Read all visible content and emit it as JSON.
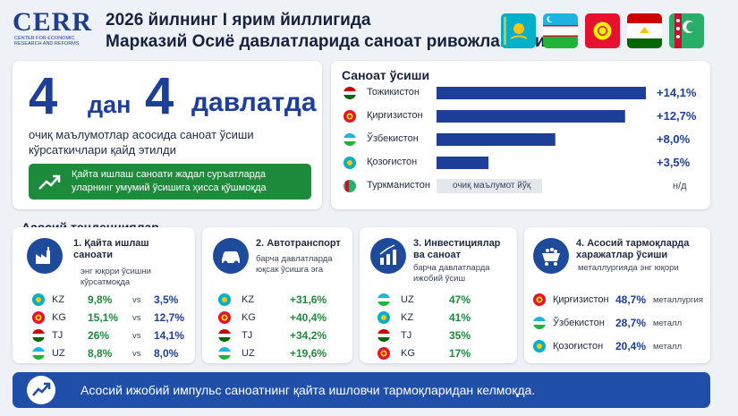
{
  "header": {
    "logo": "CERR",
    "logo_sub": "Center for Economic Research and Reforms",
    "title_line1": "2026 йилнинг I ярим йиллигида",
    "title_line2": "Марказий Осиё давлатларида саноат ривожланиши"
  },
  "hero": {
    "num1": "4",
    "word1": "дан",
    "num2": "4",
    "word2": "давлатда",
    "subtitle": "очиқ маълумотлар асосида саноат ўсиши кўрсаткичлари қайд этилди",
    "banner": "Қайта ишлаш саноати жадал суръатларда уларнинг умумий ўсишига ҳисса қўшмоқда"
  },
  "growth": {
    "title": "Саноат ўсиши",
    "no_data_label": "очиқ маълумот йўқ",
    "na": "н/д"
  },
  "chart_data": {
    "type": "bar",
    "title": "Саноат ўсиши",
    "categories": [
      "Тожикистон",
      "Қирғизистон",
      "Ўзбекистон",
      "Қозоғистон",
      "Туркманистон"
    ],
    "values": [
      14.1,
      12.7,
      8.0,
      3.5,
      null
    ],
    "value_labels": [
      "+14,1%",
      "+12,7%",
      "+8,0%",
      "+3,5%",
      "н/д"
    ],
    "colors": {
      "bar": "#1d3f9a",
      "no_data": "#e4e7ec"
    },
    "xlim": [
      0,
      14.1
    ],
    "xlabel": "",
    "ylabel": ""
  },
  "trends": {
    "title": "Асосий тенденциялар",
    "c1": {
      "title": "1. Қайта ишлаш саноати",
      "sub": "энг юқори ўсишни кўрсатмоқда",
      "vs": "vs",
      "rows": [
        {
          "code": "KZ",
          "a": "9,8%",
          "b": "3,5%"
        },
        {
          "code": "KG",
          "a": "15,1%",
          "b": "12,7%"
        },
        {
          "code": "TJ",
          "a": "26%",
          "b": "14,1%"
        },
        {
          "code": "UZ",
          "a": "8,8%",
          "b": "8,0%"
        }
      ]
    },
    "c2": {
      "title": "2. Автотранспорт",
      "sub": "барча давлатларда юқсак ўсишга эга",
      "rows": [
        {
          "code": "KZ",
          "v": "+31,6%"
        },
        {
          "code": "KG",
          "v": "+40,4%"
        },
        {
          "code": "TJ",
          "v": "+34,2%"
        },
        {
          "code": "UZ",
          "v": "+19,6%"
        }
      ]
    },
    "c3": {
      "title": "3. Инвестициялар ва саноат",
      "sub": "барча давлатларда ижобий ўсиш",
      "rows": [
        {
          "code": "UZ",
          "v": "47%"
        },
        {
          "code": "KZ",
          "v": "41%"
        },
        {
          "code": "TJ",
          "v": "35%"
        },
        {
          "code": "KG",
          "v": "17%"
        }
      ]
    },
    "c4": {
      "title": "4. Асосий тармоқларда харажатлар ўсиши",
      "sub": "металлургияда энг юқори",
      "rows": [
        {
          "country": "Қирғизистон",
          "v": "48,7%",
          "sector": "металлургия"
        },
        {
          "country": "Ўзбекистон",
          "v": "28,7%",
          "sector": "металл"
        },
        {
          "country": "Қозоғистон",
          "v": "20,4%",
          "sector": "металл"
        }
      ]
    }
  },
  "footer": {
    "text": "Асосий ижобий импульс саноатнинг қайта ишловчи тармоқларидан келмоқда."
  },
  "colors": {
    "accent": "#1d3f9a",
    "green": "#1e8a3c",
    "footer": "#1f4fa8"
  }
}
